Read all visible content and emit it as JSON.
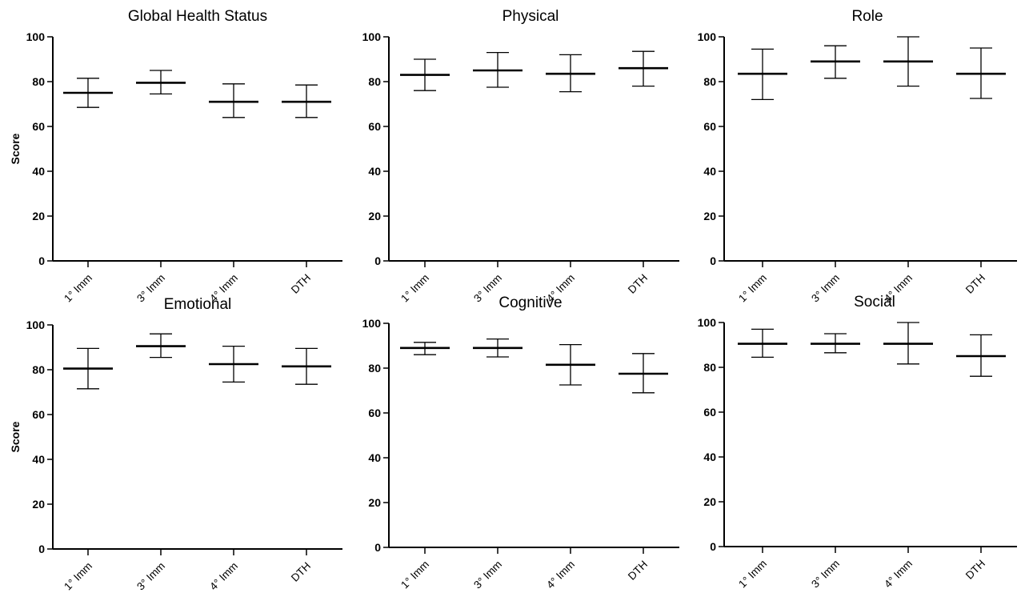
{
  "chart_data": [
    {
      "type": "errorbar",
      "title": "Global Health Status",
      "ylabel": "Score",
      "ylim": [
        0,
        100
      ],
      "yticks": [
        "0",
        "20",
        "40",
        "60",
        "80",
        "100"
      ],
      "categories": [
        "1° Imm",
        "3° Imm",
        "4° Imm",
        "DTH"
      ],
      "values": [
        75,
        79.5,
        71,
        71
      ],
      "lower": [
        68.5,
        74.5,
        64,
        64
      ],
      "upper": [
        81.5,
        85,
        79,
        78.5
      ]
    },
    {
      "type": "errorbar",
      "title": "Physical",
      "ylabel": "",
      "ylim": [
        0,
        100
      ],
      "yticks": [
        "0",
        "20",
        "40",
        "60",
        "80",
        "100"
      ],
      "categories": [
        "1° Imm",
        "3° Imm",
        "4° Imm",
        "DTH"
      ],
      "values": [
        83,
        85,
        83.5,
        86
      ],
      "lower": [
        76,
        77.5,
        75.5,
        78
      ],
      "upper": [
        90,
        93,
        92,
        93.5
      ]
    },
    {
      "type": "errorbar",
      "title": "Role",
      "ylabel": "",
      "ylim": [
        0,
        100
      ],
      "yticks": [
        "0",
        "20",
        "40",
        "60",
        "80",
        "100"
      ],
      "categories": [
        "1° Imm",
        "3° Imm",
        "4° Imm",
        "DTH"
      ],
      "values": [
        83.5,
        89,
        89,
        83.5
      ],
      "lower": [
        72,
        81.5,
        78,
        72.5
      ],
      "upper": [
        94.5,
        96,
        100,
        95
      ]
    },
    {
      "type": "errorbar",
      "title": "Emotional",
      "ylabel": "Score",
      "ylim": [
        0,
        100
      ],
      "yticks": [
        "0",
        "20",
        "40",
        "60",
        "80",
        "100"
      ],
      "categories": [
        "1° Imm",
        "3° Imm",
        "4° Imm",
        "DTH"
      ],
      "values": [
        80.5,
        90.5,
        82.5,
        81.5
      ],
      "lower": [
        71.5,
        85.5,
        74.5,
        73.5
      ],
      "upper": [
        89.5,
        96,
        90.5,
        89.5
      ]
    },
    {
      "type": "errorbar",
      "title": "Cognitive",
      "ylabel": "",
      "ylim": [
        0,
        100
      ],
      "yticks": [
        "0",
        "20",
        "40",
        "60",
        "80",
        "100"
      ],
      "categories": [
        "1° Imm",
        "3° Imm",
        "4° Imm",
        "DTH"
      ],
      "values": [
        89,
        89,
        81.5,
        77.5
      ],
      "lower": [
        86,
        85,
        72.5,
        69
      ],
      "upper": [
        91.5,
        93,
        90.5,
        86.5
      ]
    },
    {
      "type": "errorbar",
      "title": "Social",
      "ylabel": "",
      "ylim": [
        0,
        100
      ],
      "yticks": [
        "0",
        "20",
        "40",
        "60",
        "80",
        "100"
      ],
      "categories": [
        "1° Imm",
        "3° Imm",
        "4° Imm",
        "DTH"
      ],
      "values": [
        90.5,
        90.5,
        90.5,
        85
      ],
      "lower": [
        84.5,
        86.5,
        81.5,
        76
      ],
      "upper": [
        97,
        95,
        100,
        94.5
      ]
    }
  ]
}
